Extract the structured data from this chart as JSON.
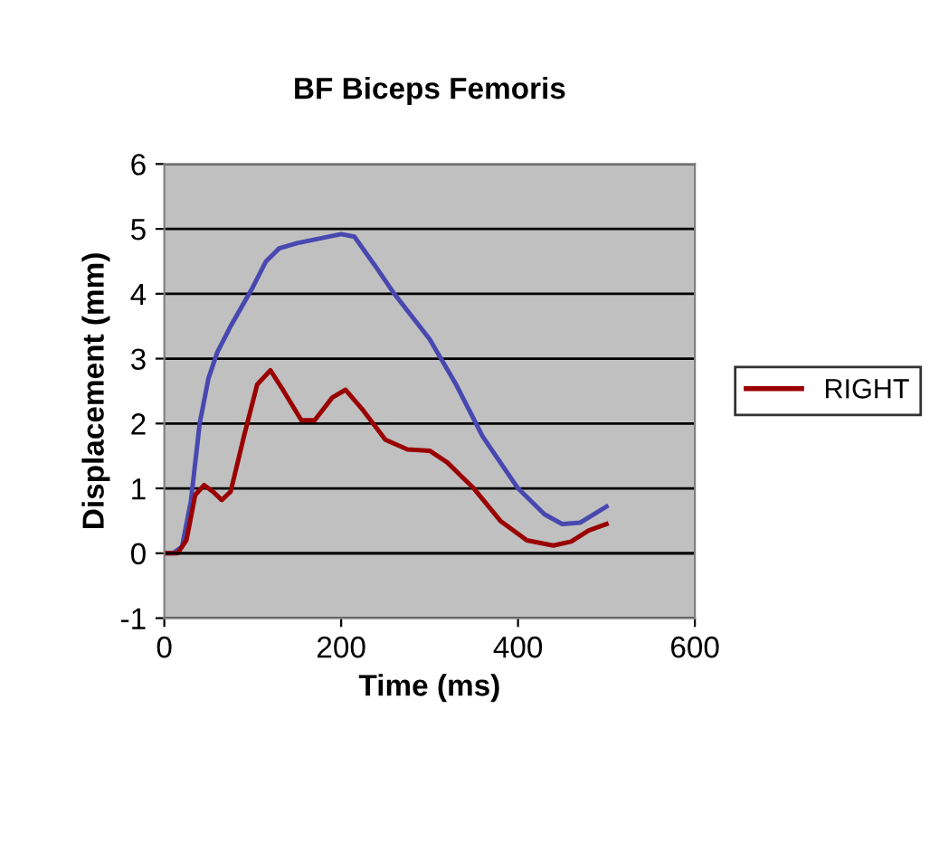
{
  "chart_data": {
    "type": "line",
    "title": "BF Biceps Femoris",
    "xlabel": "Time (ms)",
    "ylabel": "Displacement (mm)",
    "xlim": [
      0,
      600
    ],
    "xticks": [
      0,
      200,
      400,
      600
    ],
    "ylim": [
      -1,
      6
    ],
    "yticks": [
      -1,
      0,
      1,
      2,
      3,
      4,
      5,
      6
    ],
    "grid": "y",
    "legend": "right",
    "marker": "none",
    "line_style": "solid",
    "series": [
      {
        "color": "#4848b0",
        "x": [
          0,
          10,
          20,
          30,
          40,
          50,
          60,
          75,
          100,
          115,
          130,
          150,
          175,
          200,
          215,
          240,
          260,
          300,
          330,
          360,
          400,
          430,
          450,
          470,
          500
        ],
        "values": [
          0,
          0,
          0.1,
          0.8,
          2.0,
          2.7,
          3.1,
          3.5,
          4.1,
          4.5,
          4.7,
          4.78,
          4.85,
          4.92,
          4.88,
          4.4,
          4.0,
          3.3,
          2.6,
          1.8,
          1.0,
          0.6,
          0.45,
          0.47,
          0.72
        ]
      },
      {
        "name": "RIGHT",
        "color": "#9a0000",
        "x": [
          0,
          15,
          25,
          35,
          45,
          55,
          65,
          75,
          90,
          105,
          120,
          135,
          155,
          170,
          190,
          205,
          225,
          250,
          275,
          300,
          320,
          350,
          380,
          410,
          440,
          460,
          480,
          500
        ],
        "values": [
          0,
          0,
          0.2,
          0.9,
          1.05,
          0.95,
          0.82,
          0.95,
          1.8,
          2.6,
          2.82,
          2.5,
          2.05,
          2.05,
          2.4,
          2.52,
          2.2,
          1.75,
          1.6,
          1.58,
          1.4,
          1.0,
          0.5,
          0.2,
          0.12,
          0.18,
          0.35,
          0.45
        ]
      }
    ]
  }
}
